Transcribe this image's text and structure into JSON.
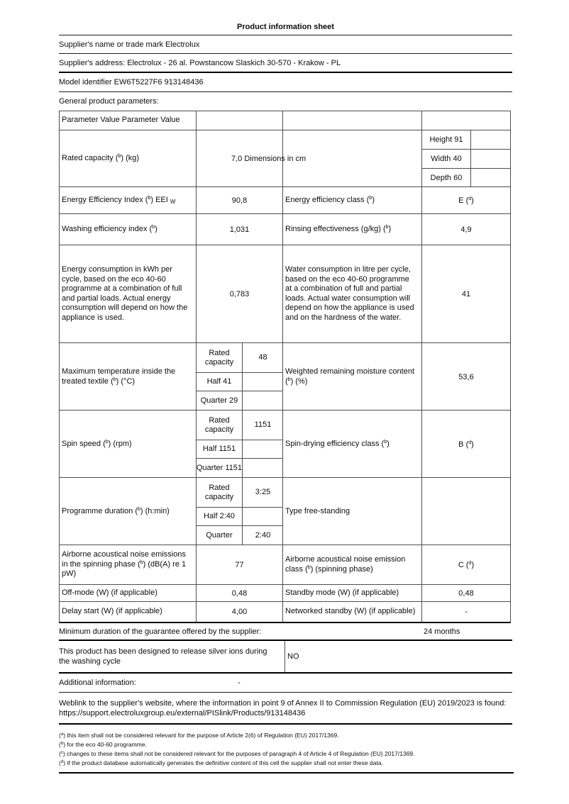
{
  "doc": {
    "title": "Product information sheet",
    "supplier_name": "Supplier's name or trade mark Electrolux",
    "supplier_address": "Supplier's address: Electrolux - 26 al. Powstancow Slaskich 30-570 - Krakow - PL",
    "model_identifier": "Model identifier EW6T5227F6 913148436",
    "general_params_heading": "General product parameters:",
    "weblink_text": "Weblink to the supplier's website, where the information in point 9 of Annex II to Commission Regulation (EU) 2019/2023 is found: ",
    "weblink_url": "https://support.electroluxgroup.eu/external/PISlink/Products/913148436"
  },
  "table": {
    "header_cell": "Parameter Value Parameter Value",
    "rated": {
      "label_pre": "Rated capacity (",
      "sup": "b",
      "label_post": ") (kg)",
      "value": "7,0 Dimensions in cm",
      "dim_height": "Height 91",
      "dim_width": "Width 40",
      "dim_depth": "Depth 60",
      "dim_val1": "",
      "dim_val2": "",
      "dim_val3": ""
    },
    "eei": {
      "label_pre": "Energy Efficiency Index (",
      "sup": "b",
      "label_mid": ") EEI ",
      "label_sub": "W",
      "value": "90,8",
      "label2_pre": "Energy efficiency class (",
      "sup2": "b",
      "label2_post": ")",
      "value2_pre": "E (",
      "value2_sup": "d",
      "value2_post": ")"
    },
    "washing": {
      "label_pre": "Washing efficiency index (",
      "sup": "b",
      "label_post": ")",
      "value": "1,031",
      "label2_pre": "Rinsing effectiveness (g/kg) (",
      "sup2": "b",
      "label2_post": ")",
      "value2": "4,9"
    },
    "consumption": {
      "label": "Energy consumption in kWh per cycle, based on the eco 40-60 programme at a combination of full and partial loads. Actual energy consumption will depend on how the appliance is used.",
      "value": "0,783",
      "label2": "Water consumption in litre per cycle, based on the eco 40-60 programme at a combination of full and partial loads. Actual water consumption will depend on how the appliance is used and on the hardness of the water.",
      "value2": "41"
    },
    "max_temp": {
      "label_pre": "Maximum temperature inside the treated textile (",
      "sup": "b",
      "label_post": ") (°C)",
      "sub_label1": "Rated capacity",
      "sub_value1": "48",
      "sub_label2": "Half 41",
      "sub_value2": "",
      "sub_label3": "Quarter 29",
      "sub_value3": "",
      "label2_pre": "Weighted remaining moisture content (",
      "sup2": "b",
      "label2_post": ") (%)",
      "value2": "53,6"
    },
    "spin_speed": {
      "label_pre": "Spin speed (",
      "sup": "b",
      "label_post": ") (rpm)",
      "sub_label1": "Rated capacity",
      "sub_value1": "1151",
      "sub_label2": "Half 1151",
      "sub_value2": "",
      "sub_label3": "Quarter 1151",
      "sub_value3": "",
      "label2_pre": "Spin-drying efficiency class (",
      "sup2": "b",
      "label2_post": ")",
      "value2_pre": "B (",
      "value2_sup": "d",
      "value2_post": ")"
    },
    "duration": {
      "label_pre": "Programme duration (",
      "sup": "b",
      "label_post": ") (h:min)",
      "sub_label1": "Rated capacity",
      "sub_value1": "3:25",
      "sub_label2": "Half 2:40",
      "sub_value2": "",
      "sub_label3": "Quarter",
      "sub_value3": "2:40",
      "label2": "Type free-standing",
      "value2": ""
    },
    "noise": {
      "label_pre": "Airborne acoustical noise emissions in the spinning phase (",
      "sup": "b",
      "label_post": ") (dB(A) re 1 pW)",
      "value": "77",
      "label2_pre": "Airborne acoustical noise emission class (",
      "sup2": "b",
      "label2_post": ") (spinning phase)",
      "value2_pre": "C (",
      "value2_sup": "d",
      "value2_post": ")"
    },
    "off_mode": {
      "label": "Off-mode (W) (if applicable)",
      "value": "0,48",
      "label2": "Standby mode (W) (if applicable)",
      "value2": "0,48"
    },
    "delay_start": {
      "label": "Delay start (W) (if applicable)",
      "value": "4,00",
      "label2": "Networked standby (W) (if applicable)",
      "value2": "-"
    }
  },
  "bottom": {
    "guarantee_label": "Minimum duration of the guarantee offered by the supplier:",
    "guarantee_value": "24 months",
    "silver_label": "This product has been designed to release silver ions during the washing cycle",
    "silver_value": "NO",
    "additional_label": "Additional information:",
    "additional_value": "-"
  },
  "footnotes": [
    {
      "pre": "(",
      "sup": "a",
      "text": ") this item shall not be considered relevant for the purpose of Article 2(6) of Regulation (EU) 2017/1369."
    },
    {
      "pre": "(",
      "sup": "b",
      "text": ") for the eco 40-60 programme."
    },
    {
      "pre": "(",
      "sup": "c",
      "text": ") changes to these items shall not be considered relevant for the purposes of paragraph 4 of Article 4 of Regulation (EU) 2017/1369."
    },
    {
      "pre": "(",
      "sup": "d",
      "text": ") if the product database automatically generates the definitive content of this cell the supplier shall not enter these data."
    }
  ]
}
